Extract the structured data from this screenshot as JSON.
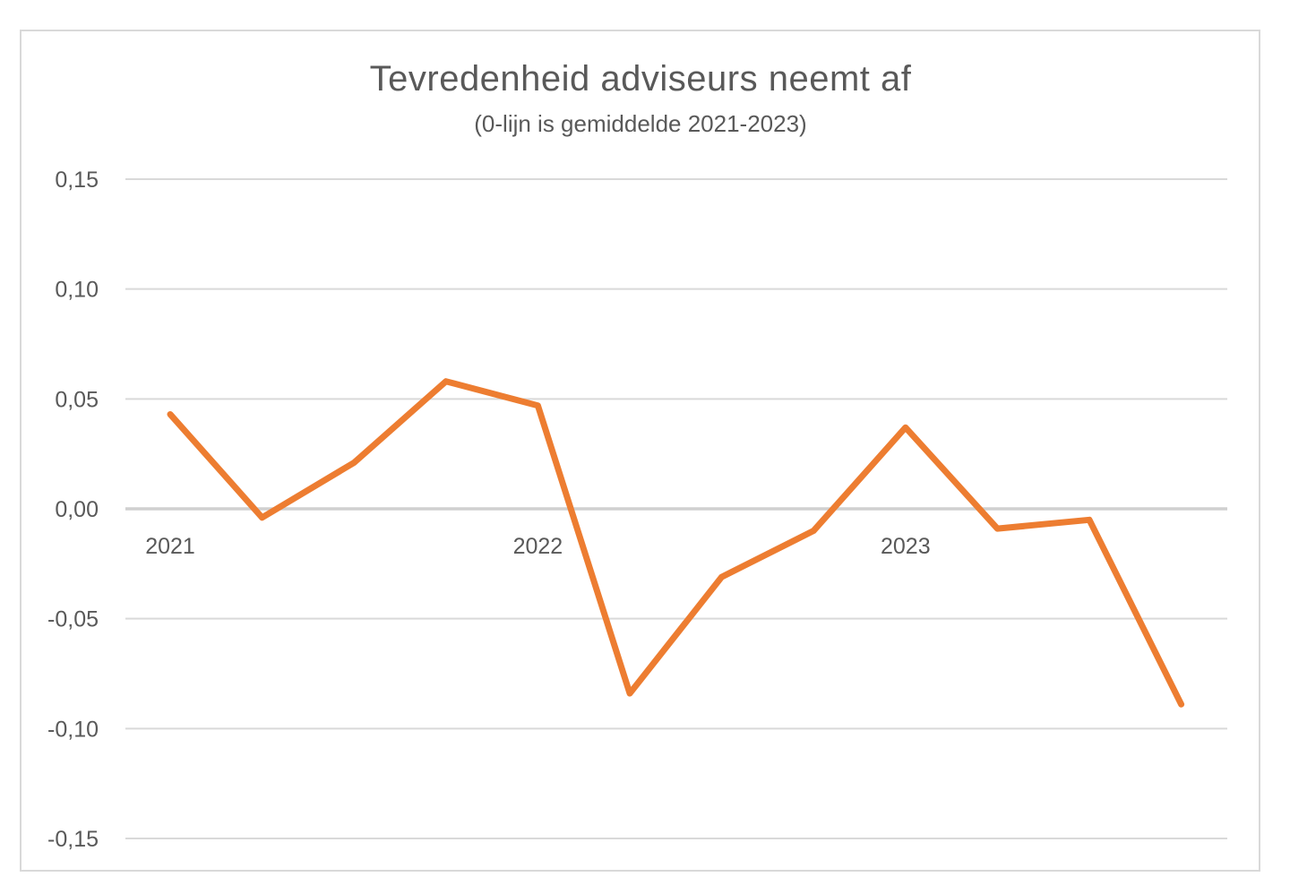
{
  "chart_data": {
    "type": "line",
    "title": "Tevredenheid adviseurs neemt af",
    "subtitle": "(0-lijn is gemiddelde 2021-2023)",
    "xlabel": "",
    "ylabel": "",
    "ylim": [
      -0.15,
      0.15
    ],
    "y_ticks": [
      "0,15",
      "0,10",
      "0,05",
      "0,00",
      "-0,05",
      "-0,10",
      "-0,15"
    ],
    "y_tick_values": [
      0.15,
      0.1,
      0.05,
      0.0,
      -0.05,
      -0.1,
      -0.15
    ],
    "x_tick_labels": [
      {
        "label": "2021",
        "index": 0
      },
      {
        "label": "2022",
        "index": 4
      },
      {
        "label": "2023",
        "index": 8
      }
    ],
    "grid": true,
    "line_color": "#ED7D31",
    "series": [
      {
        "values": [
          0.043,
          -0.004,
          0.021,
          0.058,
          0.047,
          -0.084,
          -0.031,
          -0.01,
          0.037,
          -0.009,
          -0.005,
          -0.089
        ]
      }
    ]
  }
}
